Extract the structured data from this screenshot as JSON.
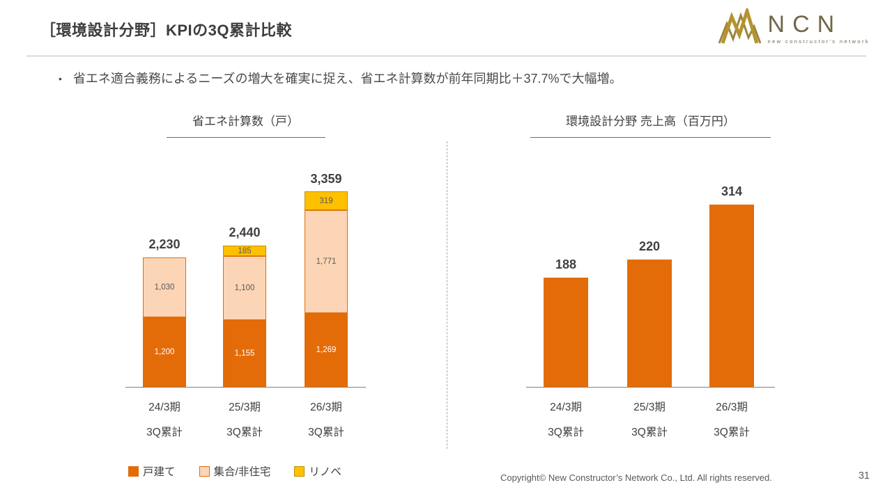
{
  "header": {
    "title": "［環境設計分野］KPIの3Q累計比較"
  },
  "logo": {
    "name": "NCN",
    "tagline": "new constructor's network",
    "gold": "#ab8c2e",
    "dark_gold": "#6f6849"
  },
  "bullet": {
    "text": "省エネ適合義務によるニーズの増大を確実に捉え、省エネ計算数が前年同期比＋37.7%で大幅増。"
  },
  "colors": {
    "orange": "#e36c09",
    "peach": "#fbd5b5",
    "yellow": "#ffc000",
    "axis": "#808080",
    "text_dark": "#404040"
  },
  "chart_data": [
    {
      "type": "bar",
      "stacked": true,
      "title": "省エネ計算数（戸）",
      "categories": [
        [
          "24/3期",
          "3Q累計"
        ],
        [
          "25/3期",
          "3Q累計"
        ],
        [
          "26/3期",
          "3Q累計"
        ]
      ],
      "series": [
        {
          "name": "戸建て",
          "color": "#e36c09",
          "label_color": "#ffffff",
          "values": [
            1200,
            1155,
            1269
          ]
        },
        {
          "name": "集合/非住宅",
          "color": "#fbd5b5",
          "border": "#e36c09",
          "label_color": "#595959",
          "values": [
            1030,
            1100,
            1771
          ]
        },
        {
          "name": "リノベ",
          "color": "#ffc000",
          "border": "#bf9000",
          "label_color": "#595959",
          "values": [
            0,
            185,
            319
          ]
        }
      ],
      "totals": [
        2230,
        2440,
        3359
      ],
      "ylim": [
        0,
        3600
      ],
      "grid": false,
      "legend_position": "bottom-left"
    },
    {
      "type": "bar",
      "stacked": false,
      "title": "環境設計分野 売上高（百万円）",
      "categories": [
        [
          "24/3期",
          "3Q累計"
        ],
        [
          "25/3期",
          "3Q累計"
        ],
        [
          "26/3期",
          "3Q累計"
        ]
      ],
      "series": [
        {
          "name": "売上高",
          "color": "#e36c09",
          "values": [
            188,
            220,
            314
          ]
        }
      ],
      "ylim": [
        0,
        360
      ],
      "grid": false
    }
  ],
  "legend": {
    "items": [
      {
        "label": "戸建て",
        "color": "#e36c09"
      },
      {
        "label": "集合/非住宅",
        "color": "#fbd5b5",
        "border": "#e36c09"
      },
      {
        "label": "リノベ",
        "color": "#ffc000",
        "border": "#bf9000"
      }
    ]
  },
  "footer": {
    "copyright": "Copyright© New Constructor’s Network Co., Ltd. All rights reserved.",
    "page_number": "31"
  }
}
